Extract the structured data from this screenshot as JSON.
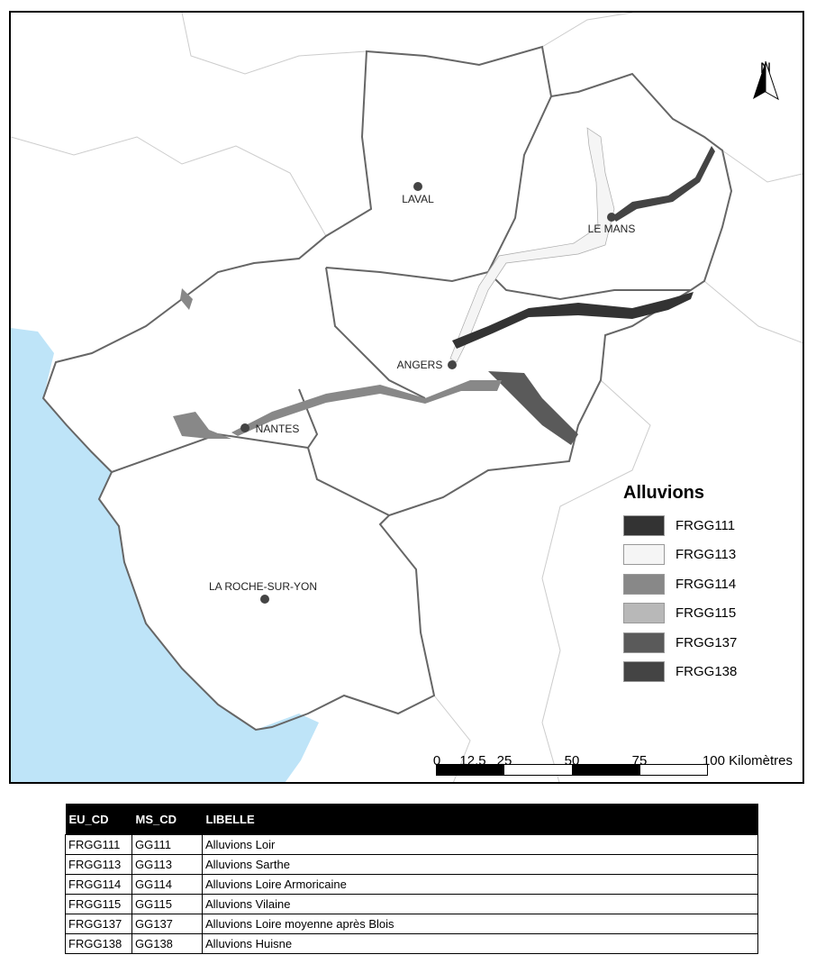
{
  "map": {
    "cities": [
      {
        "name": "LAVAL"
      },
      {
        "name": "LE MANS"
      },
      {
        "name": "ANGERS"
      },
      {
        "name": "NANTES"
      },
      {
        "name": "LA ROCHE-SUR-YON"
      }
    ],
    "colors": {
      "sea": "#bee4f8",
      "boundary": "#666666",
      "background": "#ffffff"
    },
    "north_label": "N",
    "legend": {
      "title": "Alluvions",
      "items": [
        {
          "label": "FRGG111",
          "color": "#333333"
        },
        {
          "label": "FRGG113",
          "color": "#f5f5f5"
        },
        {
          "label": "FRGG114",
          "color": "#888888"
        },
        {
          "label": "FRGG115",
          "color": "#b8b8b8"
        },
        {
          "label": "FRGG137",
          "color": "#5a5a5a"
        },
        {
          "label": "FRGG138",
          "color": "#444444"
        }
      ]
    },
    "scale": {
      "ticks": [
        "0",
        "12,5",
        "25",
        "50",
        "75",
        "100 Kilomètres"
      ]
    }
  },
  "table": {
    "headers": [
      "EU_CD",
      "MS_CD",
      "LIBELLE"
    ],
    "rows": [
      [
        "FRGG111",
        "GG111",
        "Alluvions Loir"
      ],
      [
        "FRGG113",
        "GG113",
        "Alluvions Sarthe"
      ],
      [
        "FRGG114",
        "GG114",
        "Alluvions Loire Armoricaine"
      ],
      [
        "FRGG115",
        "GG115",
        "Alluvions Vilaine"
      ],
      [
        "FRGG137",
        "GG137",
        "Alluvions Loire moyenne après Blois"
      ],
      [
        "FRGG138",
        "GG138",
        "Alluvions Huisne"
      ]
    ]
  }
}
